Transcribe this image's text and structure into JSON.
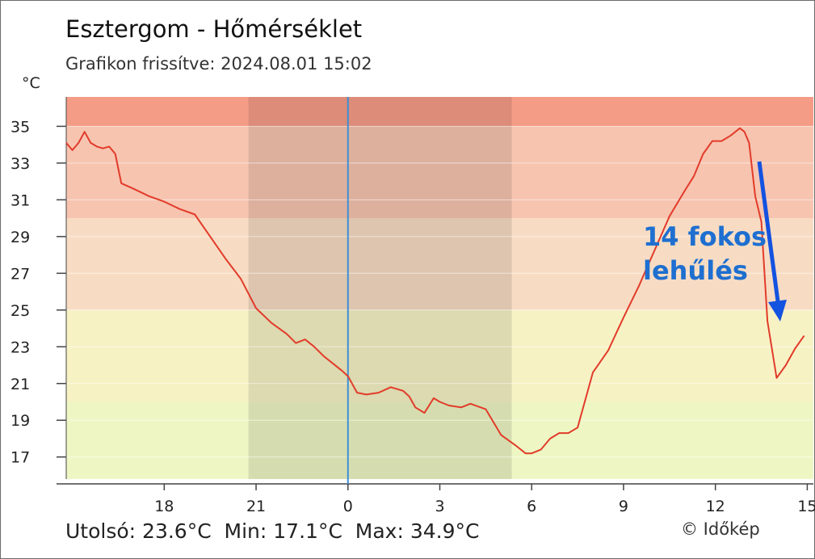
{
  "header": {
    "title": "Esztergom - Hőmérséklet",
    "subtitle": "Grafikon frissítve: 2024.08.01 15:02"
  },
  "footer": {
    "stats": "Utolsó: 23.6°C  Min: 17.1°C  Max: 34.9°C",
    "credit": "© Időkép"
  },
  "annotation": {
    "line1": "14 fokos",
    "line2": "lehűlés",
    "color": "#1e6fd0",
    "arrow_color": "#1452e0"
  },
  "chart_data": {
    "type": "line",
    "title": "Esztergom - Hőmérséklet",
    "ylabel": "°C",
    "xlabel": "",
    "ylim": [
      15.8,
      36.6
    ],
    "y_ticks": [
      35,
      33,
      31,
      29,
      27,
      25,
      23,
      21,
      19,
      17
    ],
    "x_ticks": [
      "18",
      "21",
      "0",
      "3",
      "6",
      "9",
      "12",
      "15"
    ],
    "x_tick_hours": [
      18,
      21,
      24,
      27,
      30,
      33,
      36,
      39
    ],
    "xlim_hours": [
      14.8,
      39.2
    ],
    "night_band_hours": [
      20.75,
      29.35
    ],
    "midnight_hour": 24,
    "grid": true,
    "bands": [
      {
        "from": 15.8,
        "to": 20.0,
        "color": "#eef7c4"
      },
      {
        "from": 20.0,
        "to": 25.0,
        "color": "#f7f2c4"
      },
      {
        "from": 25.0,
        "to": 30.0,
        "color": "#f7dcc3"
      },
      {
        "from": 30.0,
        "to": 35.0,
        "color": "#f7c4b0"
      },
      {
        "from": 35.0,
        "to": 36.6,
        "color": "#f59c87"
      }
    ],
    "series": [
      {
        "color": "#e23b2a",
        "x": [
          14.8,
          15.0,
          15.2,
          15.4,
          15.6,
          15.8,
          16.0,
          16.2,
          16.4,
          16.6,
          17.0,
          17.5,
          18.0,
          18.5,
          19.0,
          19.5,
          20.0,
          20.5,
          21.0,
          21.5,
          22.0,
          22.3,
          22.6,
          22.9,
          23.2,
          23.5,
          23.8,
          24.0,
          24.3,
          24.6,
          25.0,
          25.4,
          25.8,
          26.0,
          26.2,
          26.5,
          26.8,
          27.0,
          27.3,
          27.7,
          28.0,
          28.5,
          29.0,
          29.5,
          29.8,
          30.0,
          30.3,
          30.6,
          30.9,
          31.2,
          31.5,
          32.0,
          32.5,
          33.0,
          33.5,
          34.0,
          34.5,
          35.0,
          35.3,
          35.6,
          35.9,
          36.2,
          36.5,
          36.8,
          36.95,
          37.1,
          37.3,
          37.5,
          37.7,
          38.0,
          38.3,
          38.6,
          38.9
        ],
        "values": [
          34.1,
          33.7,
          34.1,
          34.7,
          34.1,
          33.9,
          33.8,
          33.9,
          33.5,
          31.9,
          31.6,
          31.2,
          30.9,
          30.5,
          30.2,
          29.0,
          27.8,
          26.7,
          25.1,
          24.3,
          23.7,
          23.2,
          23.4,
          23.0,
          22.5,
          22.1,
          21.7,
          21.4,
          20.5,
          20.4,
          20.5,
          20.8,
          20.6,
          20.3,
          19.7,
          19.4,
          20.2,
          20.0,
          19.8,
          19.7,
          19.9,
          19.6,
          18.2,
          17.6,
          17.2,
          17.2,
          17.4,
          18.0,
          18.3,
          18.3,
          18.6,
          21.6,
          22.8,
          24.6,
          26.3,
          28.2,
          30.1,
          31.5,
          32.3,
          33.5,
          34.2,
          34.2,
          34.5,
          34.9,
          34.7,
          34.1,
          31.2,
          29.8,
          24.4,
          21.3,
          22.0,
          22.9,
          23.6
        ]
      }
    ]
  }
}
